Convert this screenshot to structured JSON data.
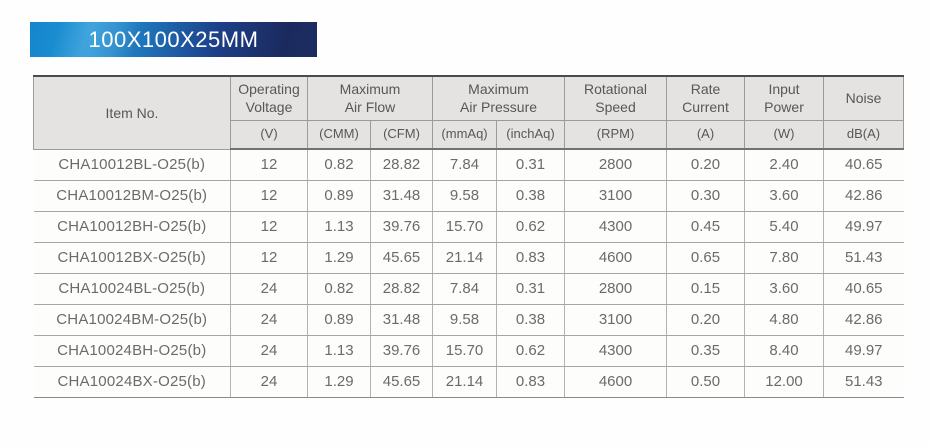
{
  "banner": {
    "title": "100X100X25MM",
    "colors": {
      "blue_left": "#1a8fd4",
      "navy_right": "#1b2a5e",
      "text": "#ffffff"
    }
  },
  "table": {
    "columns": [
      {
        "id": "item_no",
        "title": [
          "Item No."
        ],
        "unit": ""
      },
      {
        "id": "operating_voltage",
        "title": [
          "Operating",
          "Voltage"
        ],
        "unit": "(V)"
      },
      {
        "id": "max_air_flow",
        "title": [
          "Maximum",
          "Air Flow"
        ],
        "units": [
          "(CMM)",
          "(CFM)"
        ]
      },
      {
        "id": "max_air_pressure",
        "title": [
          "Maximum",
          "Air Pressure"
        ],
        "units": [
          "(mmAq)",
          "(inchAq)"
        ]
      },
      {
        "id": "rotational_speed",
        "title": [
          "Rotational",
          "Speed"
        ],
        "unit": "(RPM)"
      },
      {
        "id": "rate_current",
        "title": [
          "Rate",
          "Current"
        ],
        "unit": "(A)"
      },
      {
        "id": "input_power",
        "title": [
          "Input",
          "Power"
        ],
        "unit": "(W)"
      },
      {
        "id": "noise",
        "title": [
          "Noise"
        ],
        "unit": "dB(A)"
      }
    ],
    "rows": [
      [
        "CHA10012BL-O25(b)",
        "12",
        "0.82",
        "28.82",
        "7.84",
        "0.31",
        "2800",
        "0.20",
        "2.40",
        "40.65"
      ],
      [
        "CHA10012BM-O25(b)",
        "12",
        "0.89",
        "31.48",
        "9.58",
        "0.38",
        "3100",
        "0.30",
        "3.60",
        "42.86"
      ],
      [
        "CHA10012BH-O25(b)",
        "12",
        "1.13",
        "39.76",
        "15.70",
        "0.62",
        "4300",
        "0.45",
        "5.40",
        "49.97"
      ],
      [
        "CHA10012BX-O25(b)",
        "12",
        "1.29",
        "45.65",
        "21.14",
        "0.83",
        "4600",
        "0.65",
        "7.80",
        "51.43"
      ],
      [
        "CHA10024BL-O25(b)",
        "24",
        "0.82",
        "28.82",
        "7.84",
        "0.31",
        "2800",
        "0.15",
        "3.60",
        "40.65"
      ],
      [
        "CHA10024BM-O25(b)",
        "24",
        "0.89",
        "31.48",
        "9.58",
        "0.38",
        "3100",
        "0.20",
        "4.80",
        "42.86"
      ],
      [
        "CHA10024BH-O25(b)",
        "24",
        "1.13",
        "39.76",
        "15.70",
        "0.62",
        "4300",
        "0.35",
        "8.40",
        "49.97"
      ],
      [
        "CHA10024BX-O25(b)",
        "24",
        "1.29",
        "45.65",
        "21.14",
        "0.83",
        "4600",
        "0.50",
        "12.00",
        "51.43"
      ]
    ]
  }
}
